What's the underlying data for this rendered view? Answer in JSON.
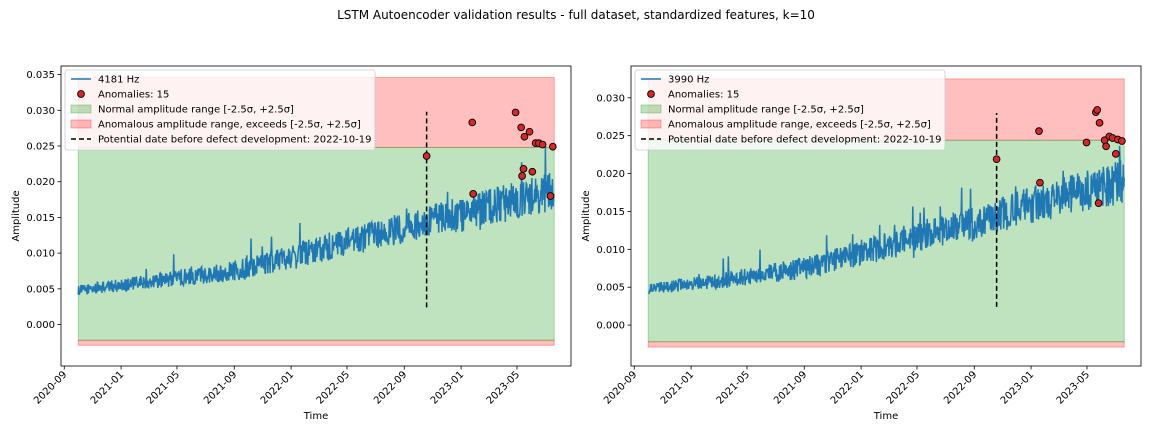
{
  "figure": {
    "suptitle": "LSTM Autoencoder validation results - full dataset, standardized features, k=10"
  },
  "chart_data": [
    {
      "type": "line",
      "xlabel": "Time",
      "ylabel": "Amplitude",
      "xlim": [
        "2020-08-25",
        "2023-08-25"
      ],
      "ylim": [
        -0.0058,
        0.0362
      ],
      "x_ticks": [
        "2020-09",
        "2021-01",
        "2021-05",
        "2021-09",
        "2022-01",
        "2022-05",
        "2022-09",
        "2023-01",
        "2023-05"
      ],
      "y_ticks": [
        0.0,
        0.005,
        0.01,
        0.015,
        0.02,
        0.025,
        0.03,
        0.035
      ],
      "y_tick_labels": [
        "0.000",
        "0.005",
        "0.010",
        "0.015",
        "0.020",
        "0.025",
        "0.030",
        "0.035"
      ],
      "grid": false,
      "legend_placement": "upper left",
      "series": [
        {
          "name": "4181 Hz",
          "color": "#1f77b4",
          "x_start": "2020-10-01",
          "x_end": "2023-07-20",
          "trend": [
            [
              "2020-10-01",
              0.0048
            ],
            [
              "2021-03-01",
              0.006
            ],
            [
              "2021-09-01",
              0.0075
            ],
            [
              "2022-03-01",
              0.0105
            ],
            [
              "2022-09-01",
              0.0135
            ],
            [
              "2023-01-01",
              0.0155
            ],
            [
              "2023-07-20",
              0.0185
            ]
          ]
        },
        {
          "name": "Anomalies: 15",
          "kind": "scatter",
          "color": "#d62728",
          "points": [
            [
              "2022-10-19",
              0.0236
            ],
            [
              "2023-01-25",
              0.0283
            ],
            [
              "2023-01-27",
              0.0183
            ],
            [
              "2023-04-28",
              0.0297
            ],
            [
              "2023-05-10",
              0.0276
            ],
            [
              "2023-05-12",
              0.0208
            ],
            [
              "2023-05-15",
              0.0218
            ],
            [
              "2023-05-17",
              0.0263
            ],
            [
              "2023-05-28",
              0.027
            ],
            [
              "2023-06-03",
              0.0214
            ],
            [
              "2023-06-10",
              0.0254
            ],
            [
              "2023-06-17",
              0.0254
            ],
            [
              "2023-06-25",
              0.0252
            ],
            [
              "2023-07-12",
              0.018
            ],
            [
              "2023-07-17",
              0.0249
            ]
          ]
        },
        {
          "name": "Normal amplitude range [-2.5σ, +2.5σ]",
          "kind": "band",
          "color": "#2ca02c",
          "range": [
            -0.0022,
            0.0248
          ],
          "x_range": [
            "2020-10-01",
            "2023-07-20"
          ]
        },
        {
          "name": "Anomalous amplitude range, exceeds [-2.5σ, +2.5σ]",
          "kind": "band",
          "color": "#ff0000",
          "ranges": [
            [
              0.0248,
              0.0346
            ],
            [
              -0.0029,
              -0.0022
            ]
          ],
          "x_range": [
            "2020-10-01",
            "2023-07-20"
          ]
        },
        {
          "name": "Potential date before defect development: 2022-10-19",
          "kind": "vline",
          "color": "#000000",
          "x": "2022-10-19",
          "y_range": [
            0.0024,
            0.0298
          ]
        }
      ]
    },
    {
      "type": "line",
      "xlabel": "Time",
      "ylabel": "Amplitude",
      "xlim": [
        "2020-08-25",
        "2023-08-25"
      ],
      "ylim": [
        -0.0054,
        0.0342
      ],
      "x_ticks": [
        "2020-09",
        "2021-01",
        "2021-05",
        "2021-09",
        "2022-01",
        "2022-05",
        "2022-09",
        "2023-01",
        "2023-05"
      ],
      "y_ticks": [
        0.0,
        0.005,
        0.01,
        0.015,
        0.02,
        0.025,
        0.03
      ],
      "y_tick_labels": [
        "0.000",
        "0.005",
        "0.010",
        "0.015",
        "0.020",
        "0.025",
        "0.030"
      ],
      "grid": false,
      "legend_placement": "upper left",
      "series": [
        {
          "name": "3990 Hz",
          "color": "#1f77b4",
          "x_start": "2020-10-01",
          "x_end": "2023-07-20",
          "trend": [
            [
              "2020-10-01",
              0.0048
            ],
            [
              "2021-03-01",
              0.0058
            ],
            [
              "2021-09-01",
              0.0075
            ],
            [
              "2022-03-01",
              0.0105
            ],
            [
              "2022-09-01",
              0.0135
            ],
            [
              "2023-01-01",
              0.0158
            ],
            [
              "2023-07-20",
              0.019
            ]
          ]
        },
        {
          "name": "Anomalies: 15",
          "kind": "scatter",
          "color": "#d62728",
          "points": [
            [
              "2022-10-19",
              0.0219
            ],
            [
              "2023-01-18",
              0.0256
            ],
            [
              "2023-01-20",
              0.0188
            ],
            [
              "2023-04-30",
              0.0241
            ],
            [
              "2023-05-20",
              0.0281
            ],
            [
              "2023-05-23",
              0.0284
            ],
            [
              "2023-05-26",
              0.0161
            ],
            [
              "2023-05-28",
              0.0267
            ],
            [
              "2023-06-08",
              0.0244
            ],
            [
              "2023-06-11",
              0.0236
            ],
            [
              "2023-06-18",
              0.0249
            ],
            [
              "2023-06-25",
              0.0247
            ],
            [
              "2023-07-02",
              0.0226
            ],
            [
              "2023-07-06",
              0.0245
            ],
            [
              "2023-07-15",
              0.0243
            ]
          ]
        },
        {
          "name": "Normal amplitude range [-2.5σ, +2.5σ]",
          "kind": "band",
          "color": "#2ca02c",
          "range": [
            -0.0022,
            0.0244
          ],
          "x_range": [
            "2020-10-01",
            "2023-07-20"
          ]
        },
        {
          "name": "Anomalous amplitude range, exceeds [-2.5σ, +2.5σ]",
          "kind": "band",
          "color": "#ff0000",
          "ranges": [
            [
              0.0244,
              0.0325
            ],
            [
              -0.0029,
              -0.0022
            ]
          ],
          "x_range": [
            "2020-10-01",
            "2023-07-20"
          ]
        },
        {
          "name": "Potential date before defect development: 2022-10-19",
          "kind": "vline",
          "color": "#000000",
          "x": "2022-10-19",
          "y_range": [
            0.0024,
            0.028
          ]
        }
      ]
    }
  ]
}
